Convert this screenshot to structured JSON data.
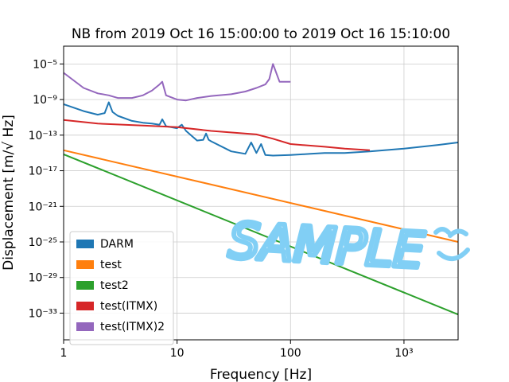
{
  "chart_data": {
    "type": "line",
    "title": "NB from 2019 Oct 16 15:00:00 to 2019 Oct 16 15:10:00",
    "xlabel": "Frequency [Hz]",
    "ylabel": "Displacement [m/√ Hz]",
    "xscale": "log",
    "yscale": "log",
    "xlim": [
      1,
      3000
    ],
    "ylim": [
      1e-36,
      0.001
    ],
    "grid": true,
    "legend_position": "lower-left",
    "x_tick_labels": [
      "1",
      "10",
      "100",
      "10³"
    ],
    "y_tick_labels": [
      "10⁻⁵",
      "10⁻⁹",
      "10⁻¹³",
      "10⁻¹⁷",
      "10⁻²¹",
      "10⁻²⁵",
      "10⁻²⁹",
      "10⁻³³"
    ],
    "watermark": "SAMPLE",
    "series": [
      {
        "name": "DARM",
        "color": "#1f77b4",
        "x": [
          1,
          1.5,
          2,
          2.3,
          2.5,
          2.7,
          3,
          4,
          5,
          6,
          7,
          7.4,
          8,
          10,
          11,
          12,
          15,
          17,
          18,
          19,
          20,
          30,
          40,
          45,
          50,
          55,
          60,
          70,
          100,
          150,
          200,
          300,
          500,
          1000,
          2000,
          3000
        ],
        "y": [
          3e-10,
          5e-11,
          2e-11,
          3e-11,
          5e-10,
          4e-11,
          1.5e-11,
          4e-12,
          2.5e-12,
          2e-12,
          1.5e-12,
          6e-12,
          1e-12,
          6e-13,
          1.5e-12,
          3e-13,
          2.5e-14,
          3e-14,
          1.5e-13,
          3e-14,
          2e-14,
          1.5e-15,
          8e-16,
          1.5e-14,
          1e-15,
          1e-14,
          6e-16,
          5e-16,
          6e-16,
          8e-16,
          1e-15,
          1e-15,
          1.5e-15,
          3e-15,
          8e-15,
          1.5e-14
        ]
      },
      {
        "name": "test",
        "color": "#ff7f0e",
        "x": [
          1,
          3000
        ],
        "y": [
          2e-15,
          1e-25
        ]
      },
      {
        "name": "test2",
        "color": "#2ca02c",
        "x": [
          1,
          3000
        ],
        "y": [
          7e-16,
          7e-34
        ]
      },
      {
        "name": "test(ITMX)",
        "color": "#d62728",
        "x": [
          1,
          2,
          5,
          10,
          20,
          50,
          70,
          100,
          200,
          300,
          500
        ],
        "y": [
          5e-12,
          2e-12,
          1.2e-12,
          8e-13,
          3e-13,
          1.2e-13,
          4e-14,
          1e-14,
          5e-15,
          3e-15,
          2e-15
        ]
      },
      {
        "name": "test(ITMX)2",
        "color": "#9467bd",
        "x": [
          1,
          1.5,
          2,
          2.5,
          3,
          4,
          5,
          6,
          7,
          7.4,
          8,
          10,
          12,
          15,
          20,
          30,
          40,
          50,
          60,
          65,
          70,
          80,
          100
        ],
        "y": [
          1e-06,
          2e-08,
          5e-09,
          3e-09,
          1.5e-09,
          1.5e-09,
          3e-09,
          1e-08,
          5e-08,
          1e-07,
          3e-09,
          1e-09,
          8e-10,
          1.5e-09,
          2.5e-09,
          4e-09,
          8e-09,
          2e-08,
          5e-08,
          2e-07,
          1e-05,
          1e-07,
          1e-07
        ]
      }
    ]
  }
}
